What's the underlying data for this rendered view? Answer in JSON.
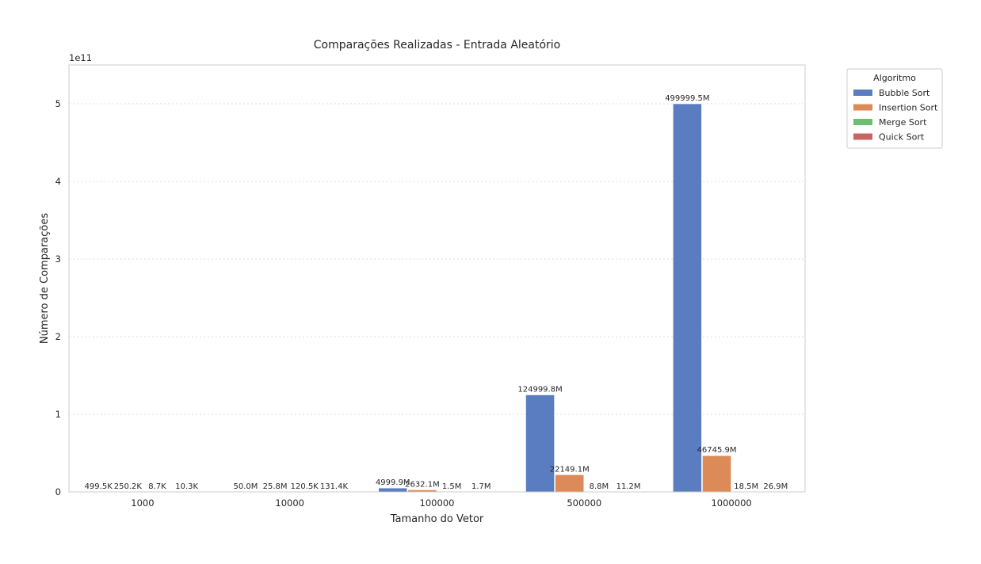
{
  "chart_data": {
    "type": "bar",
    "title": "Comparações Realizadas - Entrada Aleatório",
    "xlabel": "Tamanho do Vetor",
    "ylabel": "Número de Comparações",
    "y_offset_label": "1e11",
    "ylim": [
      0,
      550000000000
    ],
    "yticks": [
      0,
      100000000000,
      200000000000,
      300000000000,
      400000000000,
      500000000000
    ],
    "ytick_labels": [
      "0",
      "1",
      "2",
      "3",
      "4",
      "5"
    ],
    "categories": [
      "1000",
      "10000",
      "100000",
      "500000",
      "1000000"
    ],
    "grid": "horizontal dotted",
    "legend": {
      "title": "Algoritmo",
      "placement": "outside top-right"
    },
    "series": [
      {
        "name": "Bubble Sort",
        "color": "#5a7dc2",
        "values": [
          499500,
          50000000,
          4999900000,
          124999800000,
          499999500000
        ],
        "labels": [
          "499.5K",
          "50.0M",
          "4999.9M",
          "124999.8M",
          "499999.5M"
        ]
      },
      {
        "name": "Insertion Sort",
        "color": "#dd8a59",
        "values": [
          250200,
          25800000,
          2632100000,
          22149100000,
          46745900000
        ],
        "labels": [
          "250.2K",
          "25.8M",
          "2632.1M",
          "22149.1M",
          "46745.9M"
        ]
      },
      {
        "name": "Merge Sort",
        "color": "#6cbd6f",
        "values": [
          8700,
          120500,
          1500000,
          8800000,
          18500000
        ],
        "labels": [
          "8.7K",
          "120.5K",
          "1.5M",
          "8.8M",
          "18.5M"
        ]
      },
      {
        "name": "Quick Sort",
        "color": "#c86464",
        "values": [
          10300,
          131400,
          1700000,
          11200000,
          26900000
        ],
        "labels": [
          "10.3K",
          "131.4K",
          "1.7M",
          "11.2M",
          "26.9M"
        ]
      }
    ]
  }
}
